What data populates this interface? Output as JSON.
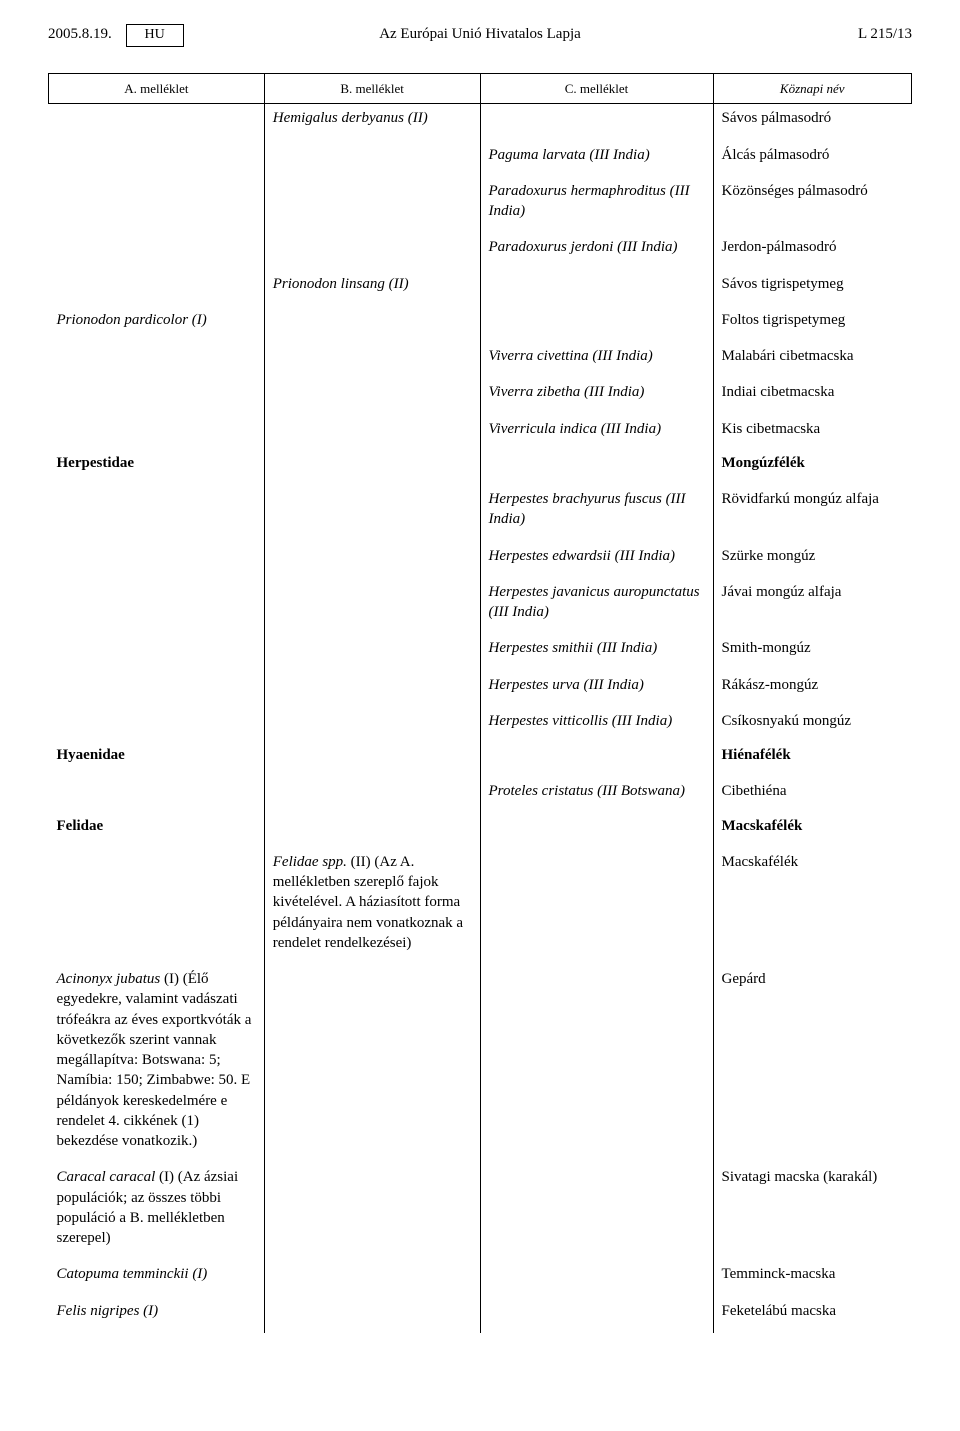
{
  "header": {
    "date": "2005.8.19.",
    "lang_box": "HU",
    "journal": "Az Európai Unió Hivatalos Lapja",
    "page_ref": "L 215/13"
  },
  "columns": {
    "a": "A. melléklet",
    "b": "B. melléklet",
    "c": "C. melléklet",
    "d": "Köznapi név"
  },
  "rows": [
    {
      "a": "",
      "b": "Hemigalus derbyanus (II)",
      "c": "",
      "d": "Sávos pálmasodró",
      "b_italic": true
    },
    {
      "a": "",
      "b": "",
      "c": "Paguma larvata (III India)",
      "d": "Álcás pálmasodró",
      "c_italic": true
    },
    {
      "a": "",
      "b": "",
      "c": "Paradoxurus hermaphroditus (III India)",
      "d": "Közönséges pálmasodró",
      "c_italic": true
    },
    {
      "a": "",
      "b": "",
      "c": "Paradoxurus jerdoni (III India)",
      "d": "Jerdon-pálmasodró",
      "c_italic": true
    },
    {
      "a": "",
      "b": "Prionodon linsang (II)",
      "c": "",
      "d": "Sávos tigrispetymeg",
      "b_italic": true
    },
    {
      "a": "Prionodon pardicolor (I)",
      "b": "",
      "c": "",
      "d": "Foltos tigrispetymeg",
      "a_italic": true
    },
    {
      "a": "",
      "b": "",
      "c": "Viverra civettina (III India)",
      "d": "Malabári cibetmacska",
      "c_italic": true
    },
    {
      "a": "",
      "b": "",
      "c": "Viverra zibetha (III India)",
      "d": "Indiai cibetmacska",
      "c_italic": true
    },
    {
      "a": "",
      "b": "",
      "c": "Viverricula indica (III India)",
      "d": "Kis cibetmacska",
      "c_italic": true
    },
    {
      "a": "Herpestidae",
      "b": "",
      "c": "",
      "d": "Mongúzfélék",
      "a_bold": true,
      "d_bold": true,
      "family": true
    },
    {
      "a": "",
      "b": "",
      "c": "Herpestes brachyurus fuscus (III India)",
      "d": "Rövidfarkú mongúz alfaja",
      "c_italic": true
    },
    {
      "a": "",
      "b": "",
      "c": "Herpestes edwardsii (III India)",
      "d": "Szürke mongúz",
      "c_italic": true
    },
    {
      "a": "",
      "b": "",
      "c": "Herpestes javanicus auropunctatus (III India)",
      "d": "Jávai mongúz alfaja",
      "c_italic": true
    },
    {
      "a": "",
      "b": "",
      "c": "Herpestes smithii (III India)",
      "d": "Smith-mongúz",
      "c_italic": true
    },
    {
      "a": "",
      "b": "",
      "c": "Herpestes urva (III India)",
      "d": "Rákász-mongúz",
      "c_italic": true
    },
    {
      "a": "",
      "b": "",
      "c": "Herpestes vitticollis (III India)",
      "d": "Csíkosnyakú mongúz",
      "c_italic": true
    },
    {
      "a": "Hyaenidae",
      "b": "",
      "c": "",
      "d": "Hiénafélék",
      "a_bold": true,
      "d_bold": true,
      "family": true
    },
    {
      "a": "",
      "b": "",
      "c": "Proteles cristatus (III Botswana)",
      "d": "Cibethiéna",
      "c_italic": true
    },
    {
      "a": "Felidae",
      "b": "",
      "c": "",
      "d": "Macskafélék",
      "a_bold": true,
      "d_bold": true,
      "family": true
    },
    {
      "a": "",
      "b_html": "<span class=\"sci\">Felidae spp.</span> (II) (Az A. mellékletben szereplő fajok kivételével. A háziasított forma példányaira nem vonatkoznak a rendelet rendelkezései)",
      "c": "",
      "d": "Macskafélék"
    },
    {
      "a_html": "<span class=\"sci\">Acinonyx jubatus</span> (I) (Élő egyedekre, valamint vadászati trófeákra az éves exportkvóták a következők szerint vannak megállapítva: Botswana: 5; Namíbia: 150; Zimbabwe: 50. E példányok kereskedelmére e rendelet 4. cikkének (1) bekezdése vonatkozik.)",
      "b": "",
      "c": "",
      "d": "Gepárd"
    },
    {
      "a_html": "<span class=\"sci\">Caracal caracal</span> (I) (Az ázsiai populációk; az összes többi populáció a B. mellékletben szerepel)",
      "b": "",
      "c": "",
      "d": "Sivatagi macska (karakál)"
    },
    {
      "a": "Catopuma temminckii (I)",
      "b": "",
      "c": "",
      "d": "Temminck-macska",
      "a_italic": true
    },
    {
      "a": "Felis nigripes (I)",
      "b": "",
      "c": "",
      "d": "Feketelábú macska",
      "a_italic": true
    }
  ]
}
